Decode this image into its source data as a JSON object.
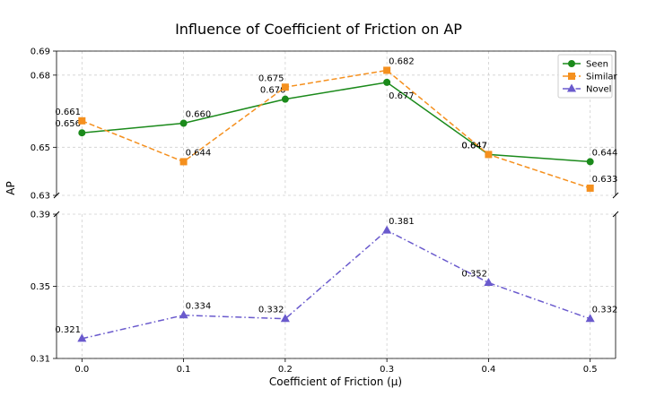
{
  "chart_data": {
    "type": "line",
    "title": "Influence of Coefficient of Friction on AP",
    "xlabel": "Coefficient of Friction (μ)",
    "ylabel": "AP",
    "x": [
      0.0,
      0.1,
      0.2,
      0.3,
      0.4,
      0.5
    ],
    "x_tick_labels": [
      "0.0",
      "0.1",
      "0.2",
      "0.3",
      "0.4",
      "0.5"
    ],
    "broken_axis": true,
    "upper_ylim": [
      0.63,
      0.69
    ],
    "upper_yticks": [
      "0.63",
      "0.65",
      "0.68",
      "0.69"
    ],
    "lower_ylim": [
      0.31,
      0.39
    ],
    "lower_yticks": [
      "0.31",
      "0.35",
      "0.39"
    ],
    "grid": true,
    "legend_position": "top-right",
    "series": [
      {
        "name": "Seen",
        "color": "#1b8a1b",
        "marker": "circle",
        "linestyle": "solid",
        "panel": "upper",
        "values": [
          0.656,
          0.66,
          0.67,
          0.677,
          0.647,
          0.644
        ],
        "labels": [
          "0.656",
          "0.660",
          "0.670",
          "0.677",
          "0.647",
          "0.644"
        ]
      },
      {
        "name": "Similar",
        "color": "#f5901e",
        "marker": "square",
        "linestyle": "dashed",
        "panel": "upper",
        "values": [
          0.661,
          0.644,
          0.675,
          0.682,
          0.647,
          0.633
        ],
        "labels": [
          "0.661",
          "0.644",
          "0.675",
          "0.682",
          "0.647",
          "0.633"
        ]
      },
      {
        "name": "Novel",
        "color": "#6a5acd",
        "marker": "triangle",
        "linestyle": "dashdot",
        "panel": "lower",
        "values": [
          0.321,
          0.334,
          0.332,
          0.381,
          0.352,
          0.332
        ],
        "labels": [
          "0.321",
          "0.334",
          "0.332",
          "0.381",
          "0.352",
          "0.332"
        ]
      }
    ]
  }
}
